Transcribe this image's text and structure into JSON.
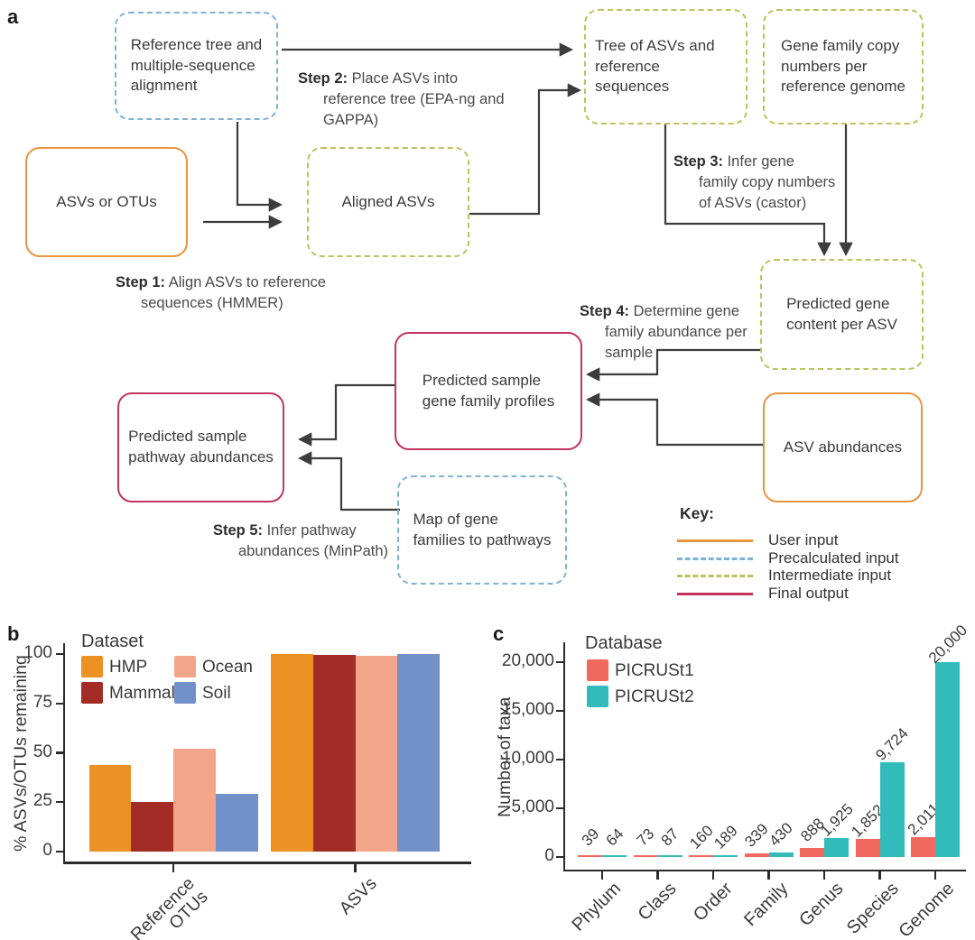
{
  "figure": {
    "panel_a_label": "a",
    "panel_b_label": "b",
    "panel_c_label": "c"
  },
  "flowchart": {
    "boxes": [
      {
        "id": "reference-tree",
        "type": "precalculated",
        "text": "Reference tree and\nmultiple-sequence\nalignment"
      },
      {
        "id": "asvs-or-otus",
        "type": "user",
        "text": "ASVs or OTUs"
      },
      {
        "id": "aligned-asvs",
        "type": "intermediate",
        "text": "Aligned ASVs"
      },
      {
        "id": "tree-of-asvs",
        "type": "intermediate",
        "text": "Tree of ASVs and\nreference sequences"
      },
      {
        "id": "gene-family-copy-numbers",
        "type": "intermediate",
        "text": "Gene family copy\nnumbers per\nreference genome"
      },
      {
        "id": "predicted-gene-content",
        "type": "intermediate",
        "text": "Predicted gene\ncontent per ASV"
      },
      {
        "id": "asv-abundances",
        "type": "user",
        "text": "ASV abundances"
      },
      {
        "id": "predicted-sample-gene-family-profiles",
        "type": "output",
        "text": "Predicted sample\ngene family profiles"
      },
      {
        "id": "predicted-sample-pathway-abundances",
        "type": "output",
        "text": "Predicted sample\npathway abundances"
      },
      {
        "id": "map-of-gene-families",
        "type": "precalculated",
        "text": "Map of gene\nfamilies to pathways"
      }
    ],
    "steps": [
      {
        "label": "Step 1:",
        "text": " Align ASVs to reference\nsequences (HMMER)"
      },
      {
        "label": "Step 2:",
        "text": " Place ASVs into\nreference tree (EPA-ng and\nGAPPA)"
      },
      {
        "label": "Step 3:",
        "text": " Infer gene\nfamily copy numbers\nof ASVs (castor)"
      },
      {
        "label": "Step 4:",
        "text": " Determine gene\nfamily abundance per\nsample"
      },
      {
        "label": "Step 5:",
        "text": " Infer pathway\nabundances (MinPath)"
      }
    ],
    "key": {
      "title": "Key:",
      "items": [
        {
          "label": "User input",
          "line": "solid",
          "color": "#E8953F"
        },
        {
          "label": "Precalculated input",
          "line": "dashed",
          "color": "#7FB3D5"
        },
        {
          "label": "Intermediate input",
          "line": "dashed",
          "color": "#B9C45F"
        },
        {
          "label": "Final output",
          "line": "solid",
          "color": "#C1355F"
        }
      ]
    },
    "type_colors": {
      "user": "#E8953F",
      "precalculated": "#7FB3D5",
      "intermediate": "#B9C45F",
      "output": "#C1355F"
    }
  },
  "chart_data": [
    {
      "type": "bar",
      "panel": "b",
      "legend_title": "Dataset",
      "categories": [
        "Reference\nOTUs",
        "ASVs"
      ],
      "series": [
        {
          "name": "HMP",
          "color": "#EC9124",
          "values": [
            44,
            100
          ]
        },
        {
          "name": "Mammal",
          "color": "#A32C27",
          "values": [
            25,
            99.5
          ]
        },
        {
          "name": "Ocean",
          "color": "#F2A588",
          "values": [
            52,
            99
          ]
        },
        {
          "name": "Soil",
          "color": "#7191C8",
          "values": [
            29,
            100
          ]
        }
      ],
      "xlabel": "",
      "ylabel": "% ASVs/OTUs remaining",
      "yticks": [
        0,
        25,
        50,
        75,
        100
      ],
      "ylim": [
        0,
        100
      ],
      "grid": false,
      "legend_position": "top-left"
    },
    {
      "type": "bar",
      "panel": "c",
      "legend_title": "Database",
      "categories": [
        "Phylum",
        "Class",
        "Order",
        "Family",
        "Genus",
        "Species",
        "Genome"
      ],
      "series": [
        {
          "name": "PICRUSt1",
          "color": "#F0685E",
          "values": [
            39,
            73,
            160,
            339,
            888,
            1852,
            2011
          ],
          "labels": [
            "39",
            "73",
            "160",
            "339",
            "888",
            "1,852",
            "2,011"
          ]
        },
        {
          "name": "PICRUSt2",
          "color": "#32BBBB",
          "values": [
            64,
            87,
            189,
            430,
            1925,
            9724,
            20000
          ],
          "labels": [
            "64",
            "87",
            "189",
            "430",
            "1,925",
            "9,724",
            "20,000"
          ]
        }
      ],
      "xlabel": "",
      "ylabel": "Number of taxa",
      "yticks": [
        0,
        5000,
        10000,
        15000,
        20000
      ],
      "ytick_labels": [
        "0",
        "5,000",
        "10,000",
        "15,000",
        "20,000"
      ],
      "ylim": [
        0,
        20000
      ],
      "grid": false,
      "legend_position": "top-left"
    }
  ]
}
